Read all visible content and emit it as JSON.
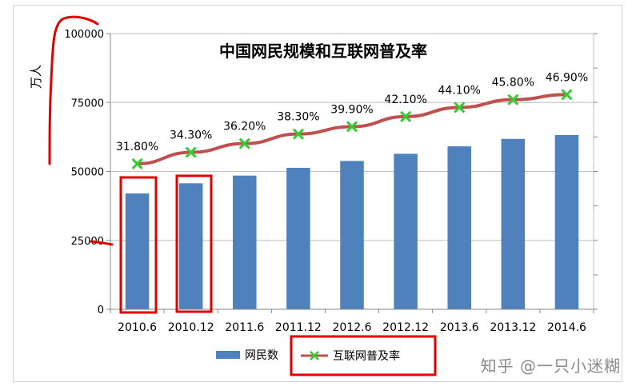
{
  "chart_data": {
    "type": "bar",
    "title": "中国网民规模和互联网普及率",
    "ylabel": "万人",
    "categories": [
      "2010.6",
      "2010.12",
      "2011.6",
      "2011.12",
      "2012.6",
      "2012.12",
      "2013.6",
      "2013.12",
      "2014.6"
    ],
    "ylim": [
      0,
      100000
    ],
    "yticks": [
      "0",
      "25000",
      "50000",
      "75000",
      "100000"
    ],
    "grid": true,
    "legend_position": "bottom",
    "series": [
      {
        "name": "网民数",
        "kind": "bar",
        "color": "#4f81bd",
        "values": [
          42000,
          45700,
          48500,
          51300,
          53800,
          56400,
          59100,
          61800,
          63200
        ]
      },
      {
        "name": "互联网普及率",
        "kind": "line",
        "color": "#c0504d",
        "marker_color": "#33cc33",
        "values": [
          31.8,
          34.3,
          36.2,
          38.3,
          39.9,
          42.1,
          44.1,
          45.8,
          46.9
        ],
        "labels": [
          "31.80%",
          "34.30%",
          "36.20%",
          "38.30%",
          "39.90%",
          "42.10%",
          "44.10%",
          "45.80%",
          "46.90%"
        ]
      }
    ]
  },
  "watermark": "知乎 @一只小迷糊",
  "annotations": {
    "color": "#e00000"
  }
}
